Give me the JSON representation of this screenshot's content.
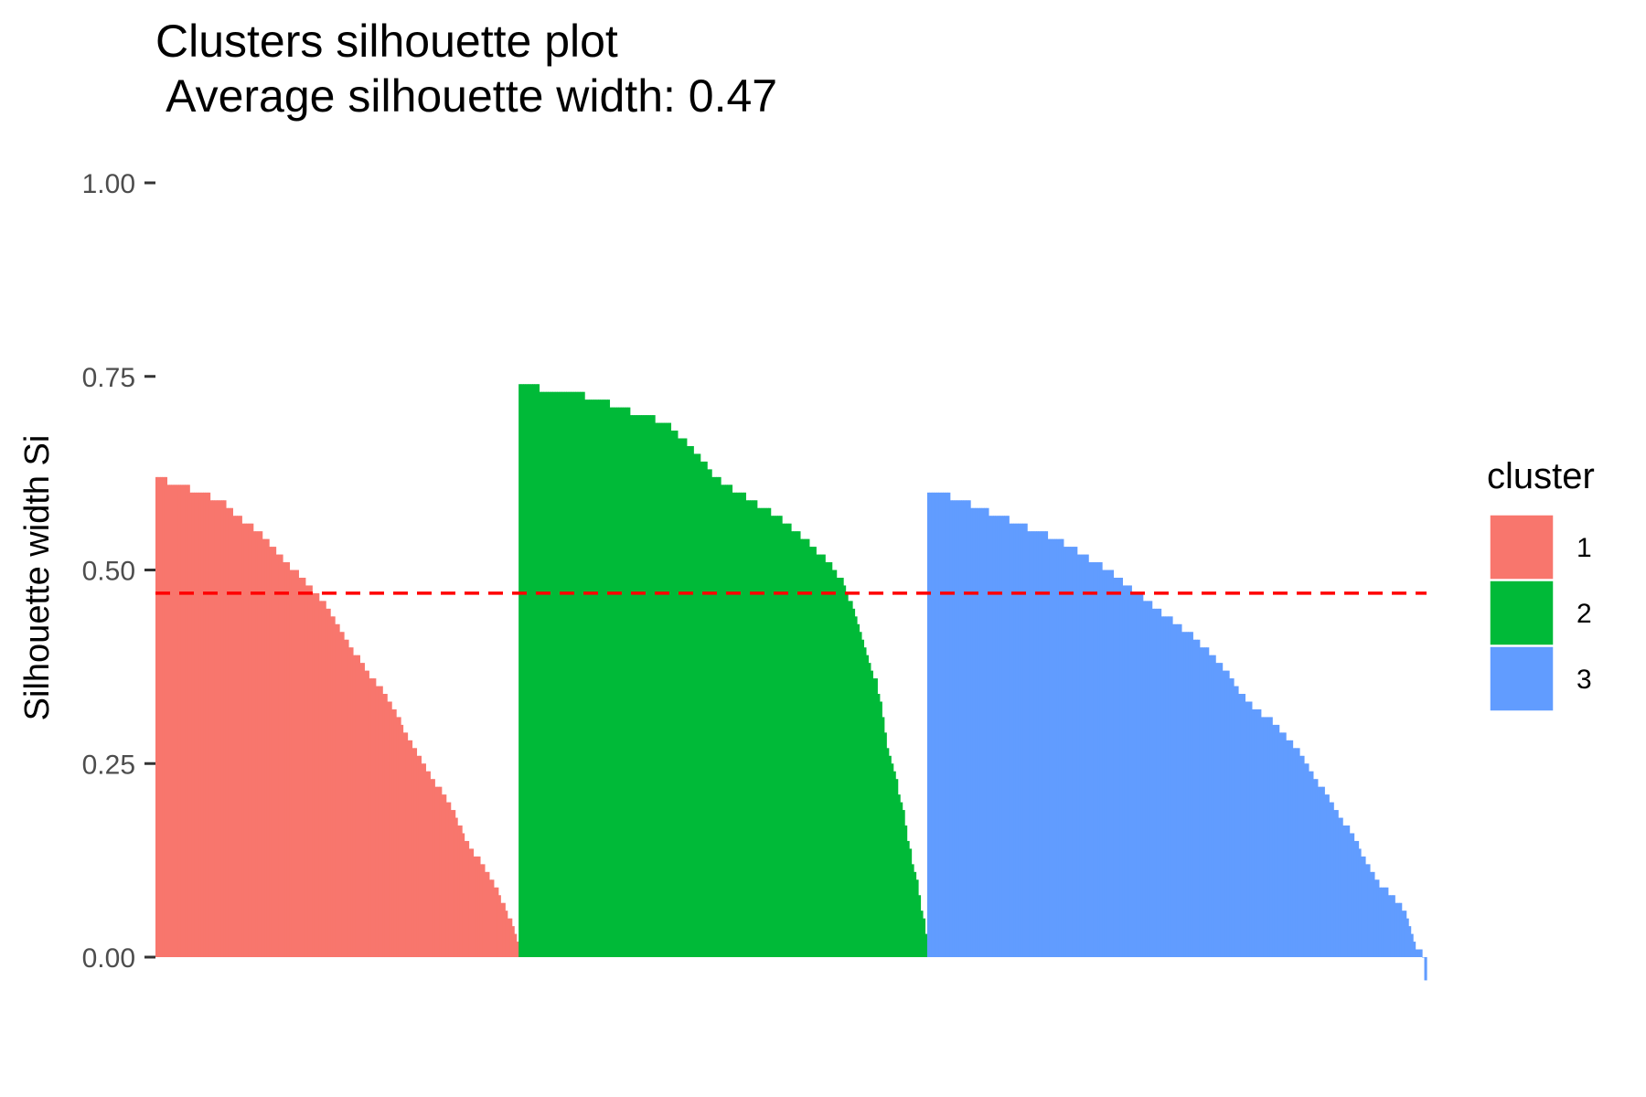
{
  "title": "Clusters silhouette plot",
  "subtitle": " Average silhouette width: 0.47",
  "chart_data": {
    "type": "bar",
    "title": "Clusters silhouette plot",
    "subtitle": " Average silhouette width: 0.47",
    "xlabel": "",
    "ylabel": "Silhouette width Si",
    "ylim": [
      -0.03,
      1.0
    ],
    "yticks": [
      0.0,
      0.25,
      0.5,
      0.75,
      1.0
    ],
    "ytick_labels": [
      "0.00",
      "0.25",
      "0.50",
      "0.75",
      "1.00"
    ],
    "average_line": {
      "value": 0.47,
      "color": "#ff0000",
      "style": "dashed"
    },
    "grid": false,
    "legend": {
      "title": "cluster",
      "position": "right"
    },
    "series": [
      {
        "name": "1",
        "color": "#F8766D",
        "profile": [
          [
            0,
            0.62
          ],
          [
            0.03,
            0.615
          ],
          [
            0.06,
            0.61
          ],
          [
            0.12,
            0.6
          ],
          [
            0.18,
            0.59
          ],
          [
            0.22,
            0.57
          ],
          [
            0.28,
            0.55
          ],
          [
            0.32,
            0.53
          ],
          [
            0.36,
            0.51
          ],
          [
            0.42,
            0.48
          ],
          [
            0.46,
            0.46
          ],
          [
            0.5,
            0.43
          ],
          [
            0.54,
            0.4
          ],
          [
            0.58,
            0.37
          ],
          [
            0.62,
            0.35
          ],
          [
            0.66,
            0.32
          ],
          [
            0.7,
            0.28
          ],
          [
            0.74,
            0.25
          ],
          [
            0.78,
            0.22
          ],
          [
            0.82,
            0.19
          ],
          [
            0.86,
            0.15
          ],
          [
            0.9,
            0.12
          ],
          [
            0.94,
            0.09
          ],
          [
            0.97,
            0.06
          ],
          [
            1.0,
            0.02
          ]
        ],
        "count": 160
      },
      {
        "name": "2",
        "color": "#00BA38",
        "profile": [
          [
            0,
            0.74
          ],
          [
            0.05,
            0.735
          ],
          [
            0.1,
            0.73
          ],
          [
            0.16,
            0.725
          ],
          [
            0.22,
            0.715
          ],
          [
            0.3,
            0.7
          ],
          [
            0.36,
            0.69
          ],
          [
            0.4,
            0.67
          ],
          [
            0.44,
            0.65
          ],
          [
            0.48,
            0.62
          ],
          [
            0.54,
            0.6
          ],
          [
            0.6,
            0.58
          ],
          [
            0.66,
            0.56
          ],
          [
            0.72,
            0.53
          ],
          [
            0.76,
            0.51
          ],
          [
            0.8,
            0.48
          ],
          [
            0.84,
            0.42
          ],
          [
            0.88,
            0.35
          ],
          [
            0.91,
            0.26
          ],
          [
            0.94,
            0.2
          ],
          [
            0.96,
            0.14
          ],
          [
            0.98,
            0.09
          ],
          [
            1.0,
            0.03
          ]
        ],
        "count": 180
      },
      {
        "name": "3",
        "color": "#619CFF",
        "profile": [
          [
            0,
            0.6
          ],
          [
            0.03,
            0.597
          ],
          [
            0.07,
            0.59
          ],
          [
            0.12,
            0.575
          ],
          [
            0.18,
            0.56
          ],
          [
            0.24,
            0.545
          ],
          [
            0.3,
            0.525
          ],
          [
            0.36,
            0.5
          ],
          [
            0.42,
            0.47
          ],
          [
            0.48,
            0.44
          ],
          [
            0.54,
            0.41
          ],
          [
            0.6,
            0.37
          ],
          [
            0.64,
            0.33
          ],
          [
            0.7,
            0.3
          ],
          [
            0.74,
            0.27
          ],
          [
            0.78,
            0.23
          ],
          [
            0.82,
            0.19
          ],
          [
            0.86,
            0.15
          ],
          [
            0.9,
            0.1
          ],
          [
            0.93,
            0.08
          ],
          [
            0.96,
            0.06
          ],
          [
            0.98,
            0.01
          ],
          [
            0.995,
            0.005
          ],
          [
            1.0,
            -0.03
          ]
        ],
        "count": 220
      }
    ]
  }
}
